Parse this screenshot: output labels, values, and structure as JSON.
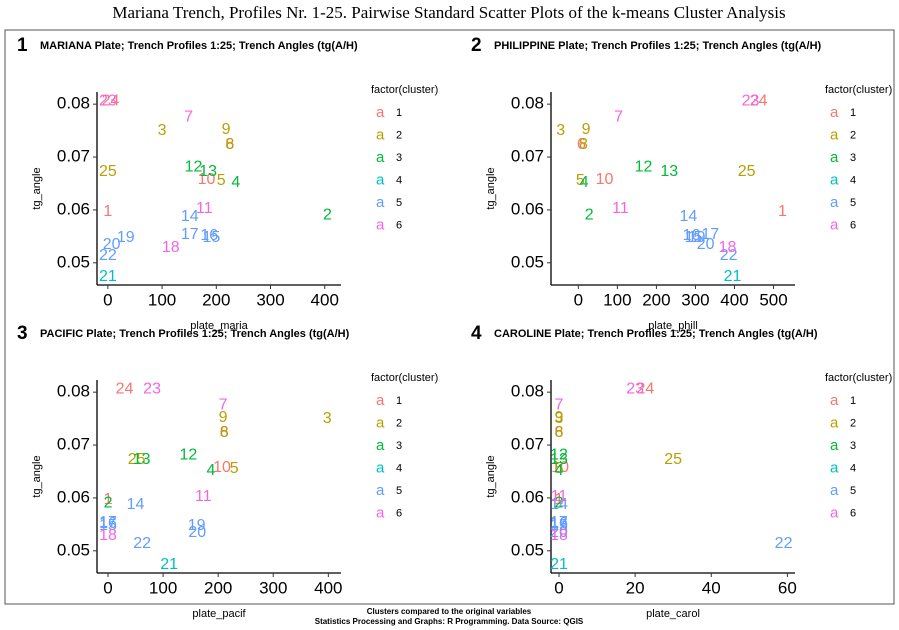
{
  "title": "Mariana Trench, Profiles Nr. 1-25. Pairwise Standard Scatter Plots of the k-means Cluster Analysis",
  "footer": [
    "Clusters compared to the original variables",
    "Statistics Processing and Graphs: R Programming. Data Source: QGIS"
  ],
  "chart_data": [
    {
      "type": "scatter",
      "panel": "1",
      "title": "MARIANA Plate; Trench Profiles 1:25; Trench Angles (tg(A/H)",
      "x_label": "plate_maria",
      "y_label": "tg_angle",
      "legend_title": "factor(cluster)",
      "legend_glyph": "a",
      "xlim": [
        -20,
        430
      ],
      "ylim": [
        0.0458,
        0.0823
      ],
      "xticks": [
        0,
        100,
        200,
        300,
        400
      ],
      "yticks": [
        0.05,
        0.06,
        0.07,
        0.08
      ],
      "series": [
        {
          "name": "1",
          "color": "#F8766D",
          "labels": [
            "1",
            "6",
            "10",
            "24"
          ],
          "x": [
            0,
            225,
            182,
            5
          ],
          "values": [
            0.0596,
            0.0723,
            0.0657,
            0.0805
          ]
        },
        {
          "name": "2",
          "color": "#B79F00",
          "labels": [
            "3",
            "5",
            "8",
            "9",
            "25"
          ],
          "x": [
            100,
            209,
            225,
            218,
            0
          ],
          "values": [
            0.075,
            0.0655,
            0.0723,
            0.0752,
            0.0672
          ]
        },
        {
          "name": "3",
          "color": "#00BA38",
          "labels": [
            "2",
            "4",
            "12",
            "13"
          ],
          "x": [
            405,
            236,
            158,
            185
          ],
          "values": [
            0.059,
            0.0651,
            0.0681,
            0.0672
          ]
        },
        {
          "name": "4",
          "color": "#00BFC4",
          "labels": [
            "21"
          ],
          "x": [
            0
          ],
          "values": [
            0.0474
          ]
        },
        {
          "name": "5",
          "color": "#619CFF",
          "labels": [
            "14",
            "15",
            "16",
            "17",
            "19",
            "20",
            "22"
          ],
          "x": [
            151,
            191,
            187,
            151,
            33,
            7,
            0
          ],
          "values": [
            0.0587,
            0.0547,
            0.0551,
            0.0553,
            0.0547,
            0.0534,
            0.0513
          ]
        },
        {
          "name": "6",
          "color": "#F564E3",
          "labels": [
            "7",
            "11",
            "18",
            "23"
          ],
          "x": [
            149,
            178,
            116,
            0
          ],
          "values": [
            0.0775,
            0.0602,
            0.0528,
            0.0805
          ]
        }
      ]
    },
    {
      "type": "scatter",
      "panel": "2",
      "title": "PHILIPPINE Plate; Trench Profiles 1:25; Trench Angles (tg(A/H)",
      "x_label": "plate_phill",
      "y_label": "tg_angle",
      "legend_title": "factor(cluster)",
      "legend_glyph": "a",
      "xlim": [
        -70,
        555
      ],
      "ylim": [
        0.0458,
        0.0823
      ],
      "xticks": [
        0,
        100,
        200,
        300,
        400,
        500
      ],
      "yticks": [
        0.05,
        0.06,
        0.07,
        0.08
      ],
      "series": [
        {
          "name": "1",
          "color": "#F8766D",
          "labels": [
            "1",
            "6",
            "10",
            "24"
          ],
          "x": [
            523,
            8,
            67,
            462
          ],
          "values": [
            0.0596,
            0.0723,
            0.0657,
            0.0805
          ]
        },
        {
          "name": "2",
          "color": "#B79F00",
          "labels": [
            "3",
            "5",
            "8",
            "9",
            "25"
          ],
          "x": [
            -45,
            5,
            13,
            20,
            431
          ],
          "values": [
            0.075,
            0.0655,
            0.0723,
            0.0752,
            0.0672
          ]
        },
        {
          "name": "3",
          "color": "#00BA38",
          "labels": [
            "2",
            "4",
            "12",
            "13"
          ],
          "x": [
            28,
            15,
            167,
            233
          ],
          "values": [
            0.059,
            0.0651,
            0.0681,
            0.0672
          ]
        },
        {
          "name": "4",
          "color": "#00BFC4",
          "labels": [
            "21"
          ],
          "x": [
            395
          ],
          "values": [
            0.0474
          ]
        },
        {
          "name": "5",
          "color": "#619CFF",
          "labels": [
            "14",
            "15",
            "16",
            "17",
            "19",
            "20",
            "22"
          ],
          "x": [
            282,
            295,
            290,
            338,
            303,
            326,
            385
          ],
          "values": [
            0.0587,
            0.0547,
            0.0551,
            0.0553,
            0.0547,
            0.0534,
            0.0513
          ]
        },
        {
          "name": "6",
          "color": "#F564E3",
          "labels": [
            "7",
            "11",
            "18",
            "23"
          ],
          "x": [
            103,
            108,
            382,
            441
          ],
          "values": [
            0.0775,
            0.0602,
            0.0528,
            0.0805
          ]
        }
      ]
    },
    {
      "type": "scatter",
      "panel": "3",
      "title": "PACIFIC Plate; Trench Profiles 1:25; Trench Angles (tg(A/H)",
      "x_label": "plate_pacif",
      "y_label": "tg_angle",
      "legend_title": "factor(cluster)",
      "legend_glyph": "a",
      "xlim": [
        -20,
        423
      ],
      "ylim": [
        0.0458,
        0.0823
      ],
      "xticks": [
        0,
        100,
        200,
        300,
        400
      ],
      "yticks": [
        0.05,
        0.06,
        0.07,
        0.08
      ],
      "series": [
        {
          "name": "1",
          "color": "#F8766D",
          "labels": [
            "1",
            "6",
            "10",
            "24"
          ],
          "x": [
            0,
            211,
            207,
            30
          ],
          "values": [
            0.0596,
            0.0723,
            0.0657,
            0.0805
          ]
        },
        {
          "name": "2",
          "color": "#B79F00",
          "labels": [
            "3",
            "5",
            "8",
            "9",
            "25"
          ],
          "x": [
            398,
            229,
            211,
            209,
            52
          ],
          "values": [
            0.075,
            0.0655,
            0.0723,
            0.0752,
            0.0672
          ]
        },
        {
          "name": "3",
          "color": "#00BA38",
          "labels": [
            "2",
            "4",
            "12",
            "13"
          ],
          "x": [
            0,
            187,
            146,
            61
          ],
          "values": [
            0.059,
            0.0651,
            0.0681,
            0.0672
          ]
        },
        {
          "name": "4",
          "color": "#00BFC4",
          "labels": [
            "21"
          ],
          "x": [
            111
          ],
          "values": [
            0.0474
          ]
        },
        {
          "name": "5",
          "color": "#619CFF",
          "labels": [
            "14",
            "15",
            "16",
            "17",
            "19",
            "20",
            "22"
          ],
          "x": [
            50,
            0,
            0,
            0,
            161,
            162,
            62
          ],
          "values": [
            0.0587,
            0.0547,
            0.0551,
            0.0553,
            0.0547,
            0.0534,
            0.0513
          ]
        },
        {
          "name": "6",
          "color": "#F564E3",
          "labels": [
            "7",
            "11",
            "18",
            "23"
          ],
          "x": [
            209,
            173,
            0,
            80
          ],
          "values": [
            0.0775,
            0.0602,
            0.0528,
            0.0805
          ]
        }
      ]
    },
    {
      "type": "scatter",
      "panel": "4",
      "title": "CAROLINE Plate; Trench Profiles 1:25; Trench Angles (tg(A/H)",
      "x_label": "plate_carol",
      "y_label": "tg_angle",
      "legend_title": "factor(cluster)",
      "legend_glyph": "a",
      "xlim": [
        -2.1,
        62
      ],
      "ylim": [
        0.0458,
        0.0823
      ],
      "xticks": [
        0,
        20,
        40,
        60
      ],
      "yticks": [
        0.05,
        0.06,
        0.07,
        0.08
      ],
      "series": [
        {
          "name": "1",
          "color": "#F8766D",
          "labels": [
            "1",
            "6",
            "10",
            "24"
          ],
          "x": [
            0,
            0,
            0.3,
            22.7
          ],
          "values": [
            0.0596,
            0.0723,
            0.0657,
            0.0805
          ]
        },
        {
          "name": "2",
          "color": "#B79F00",
          "labels": [
            "3",
            "5",
            "8",
            "9",
            "25"
          ],
          "x": [
            0,
            0,
            0,
            0,
            30
          ],
          "values": [
            0.075,
            0.0655,
            0.0723,
            0.0752,
            0.0672
          ]
        },
        {
          "name": "3",
          "color": "#00BA38",
          "labels": [
            "2",
            "4",
            "12",
            "13"
          ],
          "x": [
            0,
            0,
            0,
            0
          ],
          "values": [
            0.059,
            0.0651,
            0.0681,
            0.0672
          ]
        },
        {
          "name": "4",
          "color": "#00BFC4",
          "labels": [
            "21"
          ],
          "x": [
            0
          ],
          "values": [
            0.0474
          ]
        },
        {
          "name": "5",
          "color": "#619CFF",
          "labels": [
            "14",
            "15",
            "16",
            "17",
            "19",
            "20",
            "22"
          ],
          "x": [
            0,
            0,
            0,
            0,
            0,
            0,
            59
          ],
          "values": [
            0.0587,
            0.0547,
            0.0551,
            0.0553,
            0.0547,
            0.0534,
            0.0513
          ]
        },
        {
          "name": "6",
          "color": "#F564E3",
          "labels": [
            "7",
            "11",
            "18",
            "23"
          ],
          "x": [
            0,
            0,
            0,
            20
          ],
          "values": [
            0.0775,
            0.0602,
            0.0528,
            0.0805
          ]
        }
      ]
    }
  ]
}
